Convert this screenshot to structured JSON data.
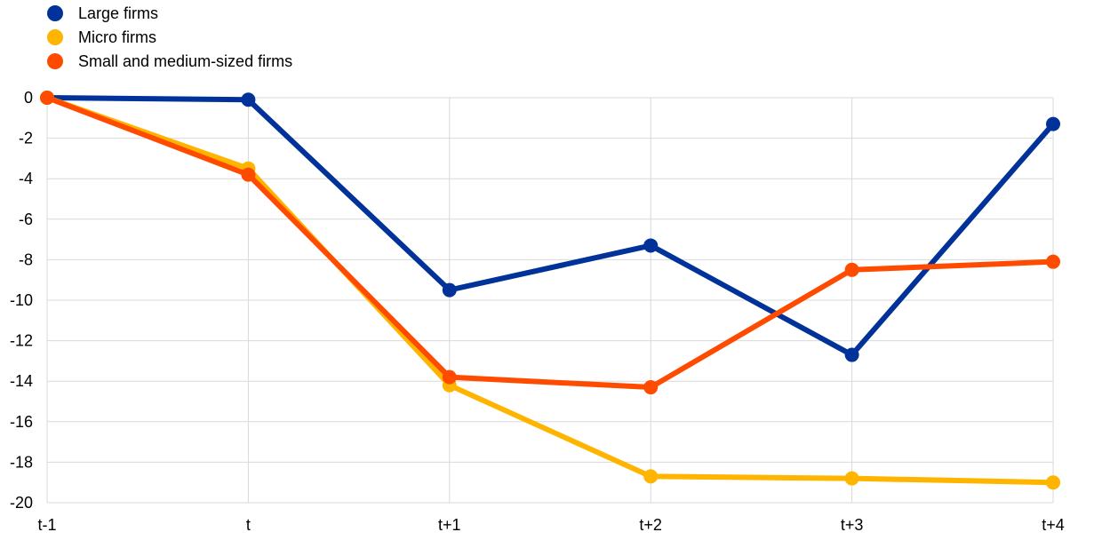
{
  "chart_data": {
    "type": "line",
    "title": "",
    "xlabel": "",
    "ylabel": "",
    "categories": [
      "t-1",
      "t",
      "t+1",
      "t+2",
      "t+3",
      "t+4"
    ],
    "ylim": [
      -20,
      0
    ],
    "yticks": [
      0,
      -2,
      -4,
      -6,
      -8,
      -10,
      -12,
      -14,
      -16,
      -18,
      -20
    ],
    "grid": true,
    "legend_position": "top-left",
    "series": [
      {
        "name": "Large firms",
        "color": "#003299",
        "values": [
          0,
          -0.1,
          -9.5,
          -7.3,
          -12.7,
          -1.3
        ]
      },
      {
        "name": "Micro firms",
        "color": "#FFB400",
        "values": [
          0,
          -3.5,
          -14.2,
          -18.7,
          -18.8,
          -19.0
        ]
      },
      {
        "name": "Small and medium-sized firms",
        "color": "#FF4B00",
        "values": [
          0,
          -3.8,
          -13.8,
          -14.3,
          -8.5,
          -8.1
        ]
      }
    ]
  }
}
